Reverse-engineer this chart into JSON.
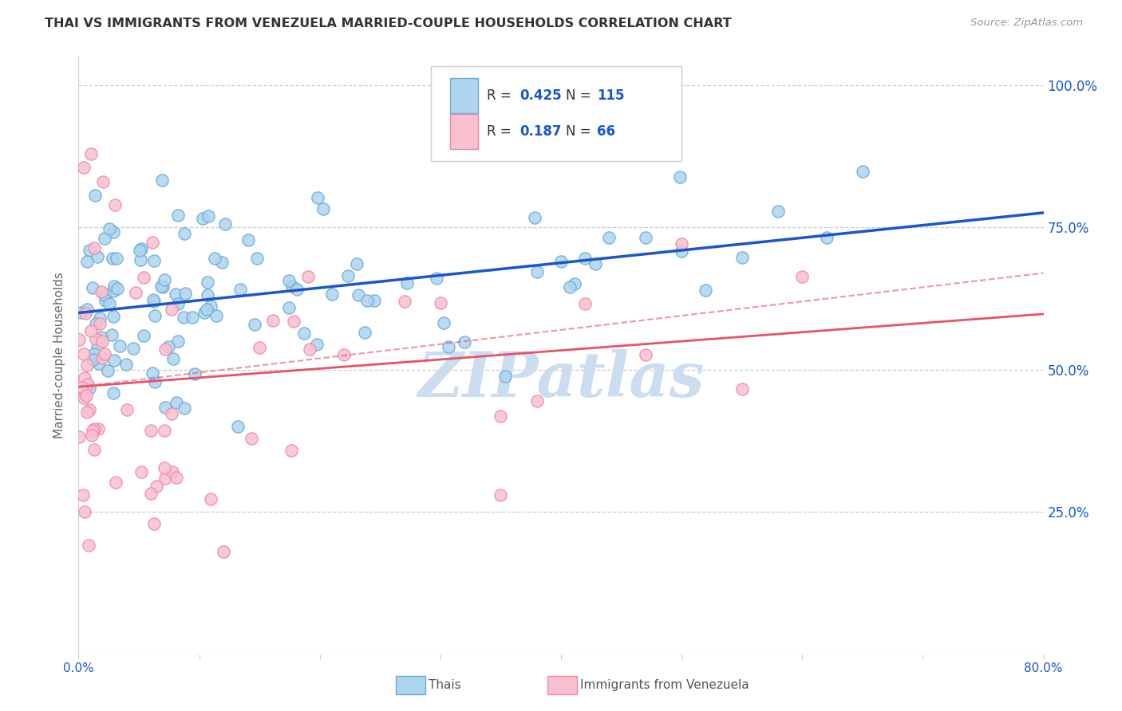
{
  "title": "THAI VS IMMIGRANTS FROM VENEZUELA MARRIED-COUPLE HOUSEHOLDS CORRELATION CHART",
  "source": "Source: ZipAtlas.com",
  "ylabel": "Married-couple Households",
  "ytick_labels": [
    "100.0%",
    "75.0%",
    "50.0%",
    "25.0%"
  ],
  "ytick_values": [
    1.0,
    0.75,
    0.5,
    0.25
  ],
  "xmin": 0.0,
  "xmax": 0.8,
  "ymin": 0.0,
  "ymax": 1.05,
  "legend_R1": "0.425",
  "legend_N1": "115",
  "legend_R2": "0.187",
  "legend_N2": "66",
  "legend_label1": "Thais",
  "legend_label2": "Immigrants from Venezuela",
  "blue_color": "#7EB8E0",
  "pink_color": "#F2A0B8",
  "blue_face_color": "#AED4EE",
  "pink_face_color": "#F9C0D0",
  "blue_edge_color": "#6AAAD4",
  "pink_edge_color": "#EE88A8",
  "blue_line_color": "#1A56CC",
  "pink_line_color": "#E8526A",
  "title_color": "#333333",
  "source_color": "#999999",
  "axis_label_color": "#1A56CC",
  "watermark_color": "#CCDDEF",
  "watermark_text": "ZIPatlas",
  "blue_line_intercept": 0.6,
  "blue_line_slope": 0.22,
  "pink_solid_intercept": 0.47,
  "pink_solid_slope": 0.16,
  "pink_dash_intercept": 0.47,
  "pink_dash_slope": 0.25
}
